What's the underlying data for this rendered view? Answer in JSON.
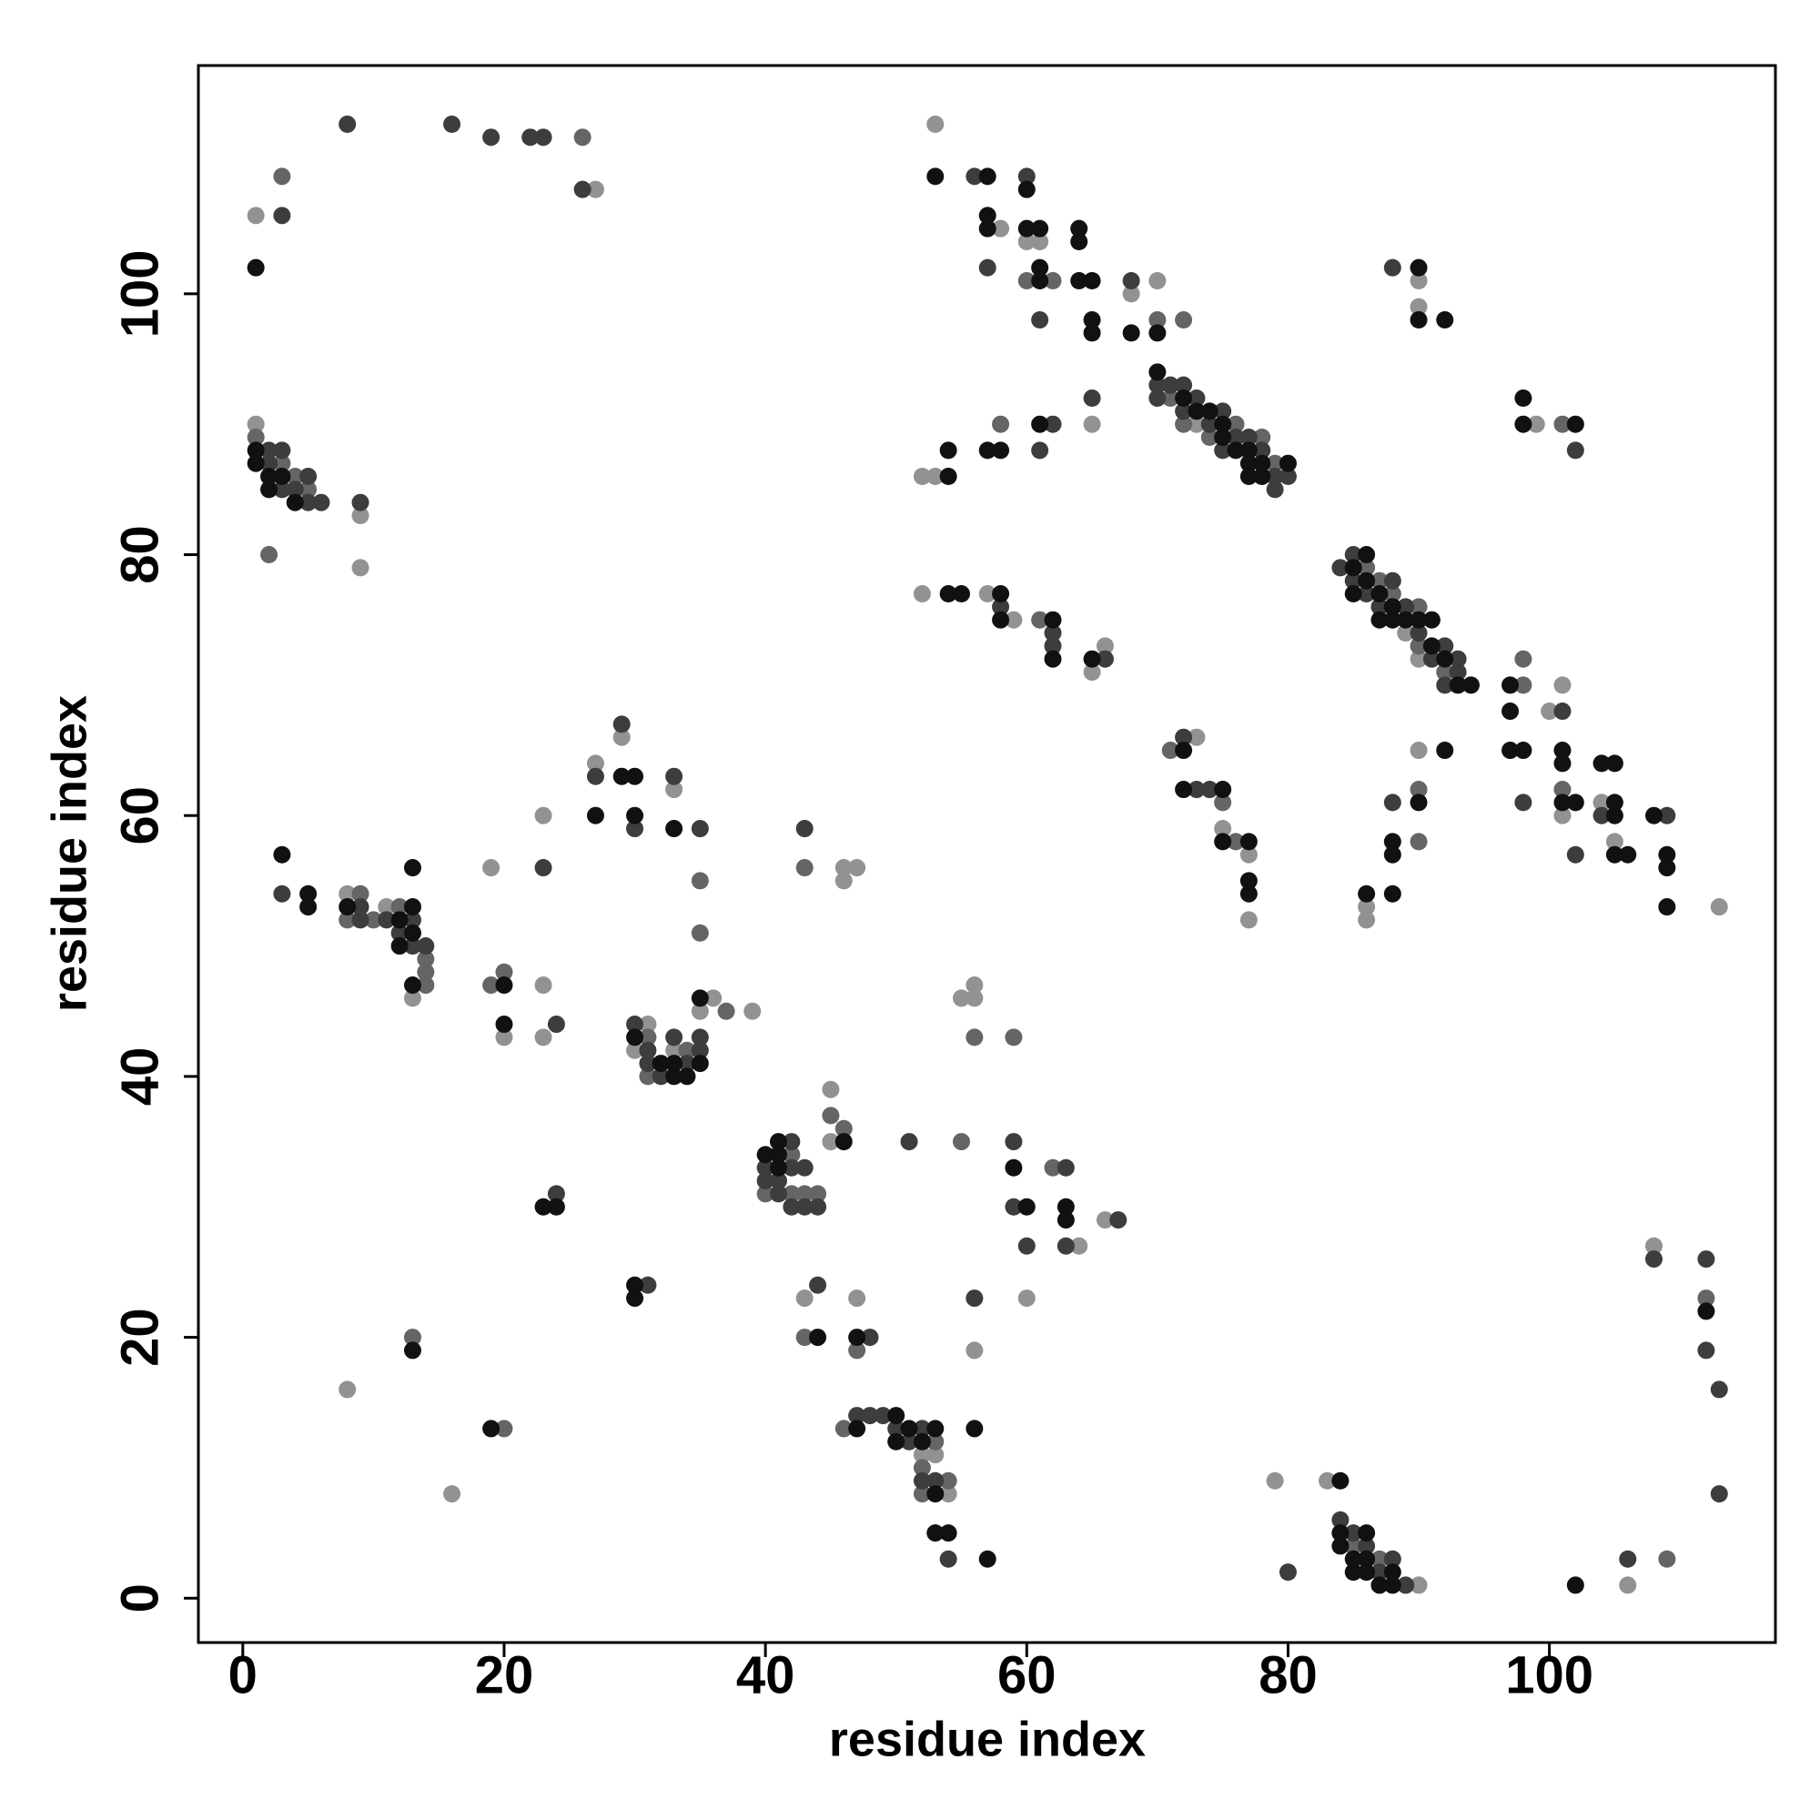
{
  "chart_data": {
    "type": "scatter",
    "xlabel": "residue index",
    "ylabel": "residue index",
    "xlim": [
      -3.4,
      117.3
    ],
    "ylim": [
      -3.4,
      117.5
    ],
    "xticks": [
      0,
      20,
      40,
      60,
      80,
      100
    ],
    "yticks": [
      0,
      20,
      40,
      60,
      80,
      100
    ],
    "series": [
      {
        "color": "#929292",
        "x": [
          27,
          1,
          1,
          9,
          9,
          8,
          11,
          13,
          19,
          20,
          23,
          23,
          23,
          27,
          29,
          33,
          35,
          36,
          39,
          30,
          31,
          33,
          8,
          16,
          46,
          46,
          47,
          45,
          45,
          43,
          47,
          52,
          53,
          54,
          55,
          56,
          56,
          56,
          60,
          64,
          66,
          53,
          58,
          60,
          61,
          68,
          70,
          73,
          52,
          53,
          65,
          52,
          57,
          59,
          65,
          66,
          73,
          75,
          77,
          77,
          89,
          90,
          90,
          90,
          99,
          90,
          86,
          86,
          100,
          101,
          101,
          104,
          105,
          113,
          83,
          79,
          90,
          106,
          108
        ],
        "values": [
          108,
          106,
          90,
          83,
          79,
          54,
          53,
          46,
          56,
          43,
          60,
          47,
          43,
          64,
          66,
          62,
          45,
          46,
          45,
          42,
          44,
          42,
          16,
          8,
          56,
          55,
          56,
          39,
          35,
          23,
          23,
          11,
          11,
          8,
          46,
          47,
          46,
          19,
          23,
          27,
          29,
          113,
          105,
          104,
          104,
          100,
          101,
          90,
          86,
          86,
          90,
          77,
          77,
          75,
          71,
          73,
          66,
          59,
          57,
          52,
          74,
          72,
          101,
          99,
          90,
          65,
          53,
          52,
          68,
          70,
          60,
          61,
          58,
          53,
          9,
          9,
          1,
          1,
          27
        ]
      },
      {
        "color": "#656565",
        "x": [
          26,
          3,
          1,
          3,
          4,
          5,
          2,
          8,
          9,
          10,
          12,
          14,
          14,
          14,
          19,
          20,
          35,
          35,
          37,
          31,
          31,
          34,
          13,
          20,
          40,
          42,
          42,
          43,
          44,
          43,
          45,
          46,
          43,
          47,
          46,
          52,
          52,
          53,
          54,
          55,
          56,
          59,
          62,
          60,
          62,
          70,
          72,
          71,
          72,
          74,
          76,
          78,
          79,
          58,
          61,
          71,
          75,
          76,
          86,
          87,
          88,
          90,
          90,
          92,
          101,
          90,
          90,
          98,
          98,
          101,
          85,
          87,
          109,
          112
        ],
        "values": [
          112,
          109,
          89,
          87,
          86,
          85,
          80,
          52,
          54,
          52,
          53,
          49,
          48,
          47,
          47,
          48,
          55,
          51,
          45,
          43,
          40,
          42,
          20,
          13,
          31,
          34,
          31,
          31,
          31,
          56,
          37,
          36,
          20,
          19,
          13,
          10,
          8,
          12,
          9,
          35,
          43,
          43,
          33,
          101,
          101,
          98,
          98,
          92,
          90,
          89,
          90,
          89,
          87,
          90,
          75,
          65,
          61,
          58,
          79,
          78,
          77,
          76,
          73,
          71,
          90,
          62,
          58,
          72,
          70,
          62,
          4,
          3,
          3,
          23
        ]
      },
      {
        "color": "#3d3d3d",
        "x": [
          8,
          16,
          19,
          22,
          23,
          26,
          3,
          2,
          2,
          3,
          3,
          4,
          5,
          5,
          6,
          9,
          3,
          9,
          9,
          11,
          12,
          13,
          13,
          14,
          23,
          24,
          27,
          29,
          30,
          33,
          35,
          30,
          31,
          31,
          32,
          33,
          34,
          35,
          35,
          24,
          31,
          40,
          40,
          41,
          41,
          42,
          42,
          42,
          43,
          43,
          44,
          43,
          44,
          48,
          47,
          48,
          49,
          50,
          51,
          52,
          52,
          53,
          54,
          51,
          56,
          59,
          59,
          60,
          63,
          63,
          67,
          56,
          57,
          60,
          61,
          68,
          70,
          70,
          71,
          72,
          72,
          73,
          74,
          75,
          75,
          76,
          77,
          78,
          79,
          79,
          80,
          62,
          61,
          65,
          58,
          62,
          62,
          66,
          72,
          73,
          74,
          84,
          85,
          85,
          86,
          87,
          88,
          89,
          90,
          91,
          92,
          92,
          93,
          93,
          88,
          102,
          88,
          98,
          101,
          102,
          104,
          109,
          84,
          85,
          86,
          87,
          88,
          89,
          80,
          106,
          108,
          112,
          112,
          113,
          113
        ],
        "values": [
          113,
          113,
          112,
          112,
          112,
          108,
          106,
          88,
          87,
          88,
          85,
          85,
          86,
          84,
          84,
          84,
          54,
          53,
          52,
          52,
          51,
          52,
          50,
          50,
          56,
          44,
          63,
          67,
          59,
          63,
          59,
          44,
          42,
          41,
          40,
          43,
          41,
          43,
          42,
          31,
          24,
          33,
          32,
          32,
          31,
          35,
          33,
          30,
          33,
          30,
          30,
          59,
          24,
          20,
          14,
          14,
          14,
          13,
          12,
          13,
          9,
          9,
          3,
          35,
          23,
          35,
          30,
          27,
          33,
          27,
          29,
          109,
          102,
          109,
          98,
          101,
          93,
          92,
          93,
          93,
          91,
          92,
          90,
          91,
          88,
          89,
          89,
          88,
          86,
          85,
          86,
          90,
          88,
          92,
          76,
          74,
          73,
          72,
          66,
          62,
          62,
          79,
          80,
          78,
          77,
          76,
          78,
          76,
          74,
          72,
          73,
          70,
          72,
          71,
          102,
          88,
          61,
          61,
          68,
          57,
          60,
          60,
          6,
          5,
          4,
          2,
          3,
          1,
          2,
          3,
          26,
          26,
          19,
          16,
          8
        ]
      },
      {
        "color": "#111111",
        "x": [
          1,
          1,
          1,
          2,
          2,
          3,
          4,
          3,
          5,
          5,
          8,
          12,
          12,
          13,
          13,
          13,
          13,
          20,
          20,
          27,
          29,
          30,
          30,
          33,
          35,
          30,
          32,
          33,
          33,
          34,
          35,
          23,
          24,
          30,
          30,
          13,
          19,
          40,
          41,
          41,
          41,
          46,
          44,
          47,
          47,
          50,
          50,
          51,
          52,
          53,
          53,
          53,
          54,
          57,
          56,
          59,
          60,
          63,
          63,
          53,
          57,
          57,
          57,
          60,
          60,
          61,
          61,
          61,
          64,
          64,
          64,
          65,
          65,
          65,
          68,
          70,
          70,
          72,
          73,
          74,
          75,
          75,
          76,
          77,
          77,
          77,
          78,
          78,
          80,
          54,
          54,
          57,
          58,
          61,
          54,
          55,
          58,
          58,
          62,
          62,
          65,
          72,
          72,
          75,
          75,
          77,
          77,
          77,
          85,
          85,
          86,
          86,
          87,
          87,
          88,
          88,
          89,
          90,
          91,
          91,
          92,
          93,
          94,
          90,
          90,
          92,
          98,
          98,
          102,
          92,
          90,
          88,
          88,
          88,
          86,
          97,
          97,
          97,
          98,
          101,
          101,
          101,
          102,
          104,
          105,
          105,
          105,
          105,
          106,
          108,
          109,
          109,
          109,
          84,
          84,
          84,
          85,
          85,
          86,
          86,
          86,
          87,
          88,
          88,
          102,
          112
        ],
        "values": [
          102,
          88,
          87,
          86,
          85,
          86,
          84,
          57,
          54,
          53,
          53,
          52,
          50,
          56,
          53,
          51,
          47,
          47,
          44,
          60,
          63,
          63,
          60,
          59,
          46,
          43,
          41,
          41,
          40,
          40,
          41,
          30,
          30,
          24,
          23,
          19,
          13,
          34,
          35,
          34,
          33,
          35,
          20,
          20,
          13,
          14,
          12,
          13,
          12,
          13,
          8,
          5,
          5,
          3,
          13,
          33,
          30,
          30,
          29,
          109,
          109,
          106,
          105,
          108,
          105,
          105,
          102,
          101,
          105,
          104,
          101,
          101,
          98,
          97,
          97,
          97,
          94,
          92,
          91,
          91,
          90,
          89,
          88,
          88,
          87,
          86,
          87,
          86,
          87,
          88,
          86,
          88,
          88,
          90,
          77,
          77,
          77,
          75,
          75,
          72,
          72,
          65,
          62,
          62,
          58,
          58,
          55,
          54,
          79,
          77,
          80,
          78,
          77,
          75,
          76,
          75,
          75,
          75,
          75,
          73,
          72,
          70,
          70,
          102,
          98,
          98,
          92,
          90,
          90,
          65,
          61,
          58,
          57,
          54,
          54,
          70,
          68,
          65,
          65,
          65,
          64,
          61,
          61,
          64,
          64,
          61,
          60,
          57,
          57,
          60,
          57,
          56,
          53,
          9,
          5,
          4,
          3,
          2,
          5,
          3,
          2,
          1,
          2,
          1,
          1,
          22
        ]
      }
    ]
  }
}
